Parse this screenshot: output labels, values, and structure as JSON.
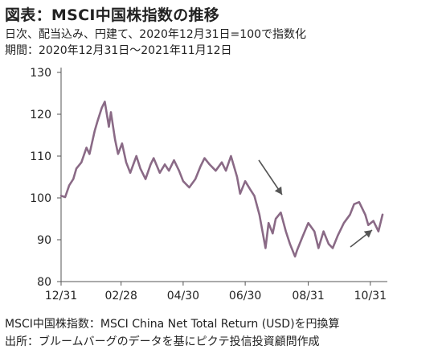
{
  "header": {
    "title": "図表：MSCI中国株指数の推移",
    "subtitle": "日次、配当込み、円建て、2020年12月31日=100で指数化",
    "period": "期間：2020年12月31日～2021年11月12日"
  },
  "footer": {
    "note1": "MSCI中国株指数：MSCI China Net Total Return (USD)を円換算",
    "note2": "出所：ブルームバーグのデータを基にピクテ投信投資顧問作成"
  },
  "colors": {
    "line": "#8a6a86",
    "axis": "#555555",
    "arrow": "#555555"
  },
  "chart_data": {
    "type": "line",
    "title": "MSCI中国株指数の推移",
    "xlabel": "",
    "ylabel": "",
    "ylim": [
      80,
      130
    ],
    "yticks": [
      130,
      120,
      110,
      100,
      90,
      80
    ],
    "xticks": [
      "12/31",
      "02/28",
      "04/30",
      "06/30",
      "08/31",
      "10/31"
    ],
    "grid": false,
    "annotations": [
      "down-arrow near mid-July 2021",
      "up-arrow near early November 2021"
    ],
    "series": [
      {
        "x": [
          "2020-12-31",
          "2021-01-04",
          "2021-01-08",
          "2021-01-12",
          "2021-01-15",
          "2021-01-20",
          "2021-01-25",
          "2021-01-28",
          "2021-02-02",
          "2021-02-05",
          "2021-02-09",
          "2021-02-12",
          "2021-02-16",
          "2021-02-18",
          "2021-02-22",
          "2021-02-25",
          "2021-03-01",
          "2021-03-05",
          "2021-03-09",
          "2021-03-15",
          "2021-03-19",
          "2021-03-24",
          "2021-03-29",
          "2021-04-01",
          "2021-04-07",
          "2021-04-12",
          "2021-04-16",
          "2021-04-21",
          "2021-04-26",
          "2021-04-30",
          "2021-05-06",
          "2021-05-12",
          "2021-05-17",
          "2021-05-21",
          "2021-05-26",
          "2021-06-01",
          "2021-06-07",
          "2021-06-11",
          "2021-06-16",
          "2021-06-22",
          "2021-06-25",
          "2021-06-30",
          "2021-07-05",
          "2021-07-09",
          "2021-07-14",
          "2021-07-20",
          "2021-07-23",
          "2021-07-27",
          "2021-07-30",
          "2021-08-04",
          "2021-08-09",
          "2021-08-13",
          "2021-08-18",
          "2021-08-20",
          "2021-08-25",
          "2021-08-31",
          "2021-09-06",
          "2021-09-10",
          "2021-09-15",
          "2021-09-20",
          "2021-09-24",
          "2021-09-29",
          "2021-10-05",
          "2021-10-11",
          "2021-10-15",
          "2021-10-20",
          "2021-10-26",
          "2021-10-29",
          "2021-11-03",
          "2021-11-08",
          "2021-11-12"
        ],
        "values": [
          100.5,
          100.2,
          103.0,
          104.5,
          107.0,
          108.5,
          112.0,
          110.5,
          116.0,
          118.5,
          121.5,
          123.0,
          117.0,
          120.5,
          114.0,
          110.5,
          113.0,
          108.5,
          106.0,
          110.0,
          107.0,
          104.5,
          108.0,
          109.5,
          106.0,
          108.0,
          106.5,
          109.0,
          106.5,
          104.0,
          102.5,
          104.5,
          107.5,
          109.5,
          108.0,
          106.5,
          108.5,
          106.5,
          110.0,
          105.0,
          101.0,
          104.0,
          102.0,
          100.5,
          96.0,
          88.0,
          94.0,
          91.5,
          95.0,
          96.5,
          92.0,
          89.0,
          86.0,
          87.5,
          90.5,
          94.0,
          92.0,
          88.0,
          92.0,
          89.0,
          88.0,
          91.0,
          94.0,
          96.0,
          98.5,
          99.0,
          96.0,
          93.5,
          94.5,
          92.0,
          96.0
        ]
      }
    ]
  }
}
